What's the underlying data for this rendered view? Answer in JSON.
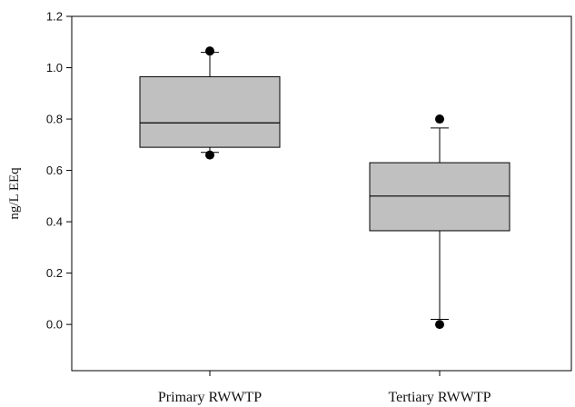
{
  "chart_data": {
    "type": "box",
    "title": "",
    "xlabel": "",
    "ylabel": "ng/L EEq",
    "ylim": [
      -0.18,
      1.2
    ],
    "yticks": [
      "0.0",
      "0.2",
      "0.4",
      "0.6",
      "0.8",
      "1.0",
      "1.2"
    ],
    "grid": false,
    "categories": [
      "Primary RWWTP",
      "Tertiary RWWTP"
    ],
    "series": [
      {
        "category": "Primary RWWTP",
        "whisker_low": 0.67,
        "q1": 0.69,
        "median": 0.785,
        "q3": 0.965,
        "whisker_high": 1.06,
        "outliers": [
          1.065,
          0.66
        ]
      },
      {
        "category": "Tertiary RWWTP",
        "whisker_low": 0.02,
        "q1": 0.365,
        "median": 0.5,
        "q3": 0.63,
        "whisker_high": 0.765,
        "outliers": [
          0.8,
          0.0
        ]
      }
    ],
    "colors": {
      "box_fill": "#c0c0c0",
      "stroke": "#000000",
      "outlier": "#000000"
    }
  }
}
